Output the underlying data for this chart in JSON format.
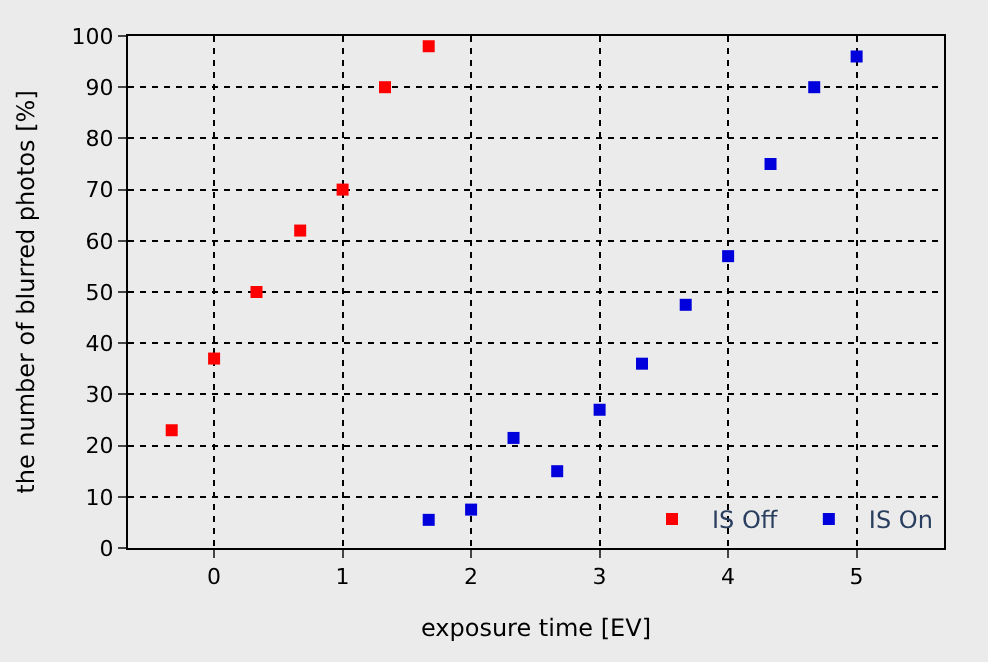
{
  "chart_data": {
    "type": "scatter",
    "xlabel": "exposure time [EV]",
    "ylabel": "the number of blurred photos [%]",
    "xlim": [
      -0.67,
      5.68
    ],
    "ylim": [
      0,
      100
    ],
    "xticks": [
      0,
      1,
      2,
      3,
      4,
      5
    ],
    "yticks": [
      0,
      10,
      20,
      30,
      40,
      50,
      60,
      70,
      80,
      90,
      100
    ],
    "grid": true,
    "legend": "bottom right",
    "marker": "square",
    "series": [
      {
        "name": "IS Off",
        "color": "#ff0000",
        "x": [
          -0.33,
          0,
          0.33,
          0.67,
          1,
          1.33,
          1.67
        ],
        "values": [
          23,
          37,
          50,
          62,
          70,
          90,
          98
        ]
      },
      {
        "name": "IS On",
        "color": "#0000dd",
        "x": [
          1.67,
          2,
          2.33,
          2.67,
          3,
          3.33,
          3.67,
          4,
          4.33,
          4.67,
          5
        ],
        "values": [
          5.5,
          7.5,
          21.5,
          15,
          27,
          36,
          47.5,
          57,
          75,
          90,
          96
        ]
      }
    ]
  }
}
